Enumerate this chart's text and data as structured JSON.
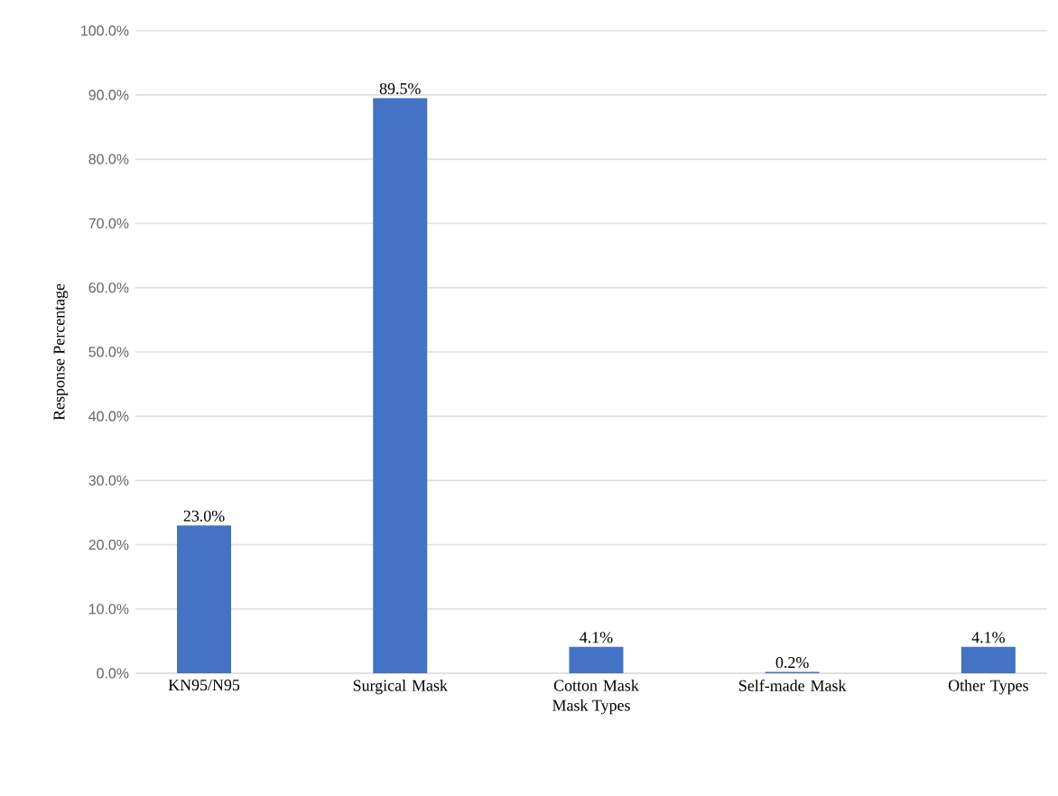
{
  "chart_data": {
    "type": "bar",
    "categories": [
      "KN95/N95",
      "Surgical Mask",
      "Cotton Mask",
      "Self-made Mask",
      "Other Types"
    ],
    "values": [
      23.0,
      89.5,
      4.1,
      0.2,
      4.1
    ],
    "value_labels": [
      "23.0%",
      "89.5%",
      "4.1%",
      "0.2%",
      "4.1%"
    ],
    "color": "#4472c4",
    "xlabel": "Mask Types",
    "ylabel": "Response Percentage",
    "ylim": [
      0,
      100
    ],
    "yticks": [
      {
        "value": 0,
        "label": "0.0%"
      },
      {
        "value": 10,
        "label": "10.0%"
      },
      {
        "value": 20,
        "label": "20.0%"
      },
      {
        "value": 30,
        "label": "30.0%"
      },
      {
        "value": 40,
        "label": "40.0%"
      },
      {
        "value": 50,
        "label": "50.0%"
      },
      {
        "value": 60,
        "label": "60.0%"
      },
      {
        "value": 70,
        "label": "70.0%"
      },
      {
        "value": 80,
        "label": "80.0%"
      },
      {
        "value": 90,
        "label": "90.0%"
      },
      {
        "value": 100,
        "label": "100.0%"
      }
    ],
    "grid": "y"
  }
}
